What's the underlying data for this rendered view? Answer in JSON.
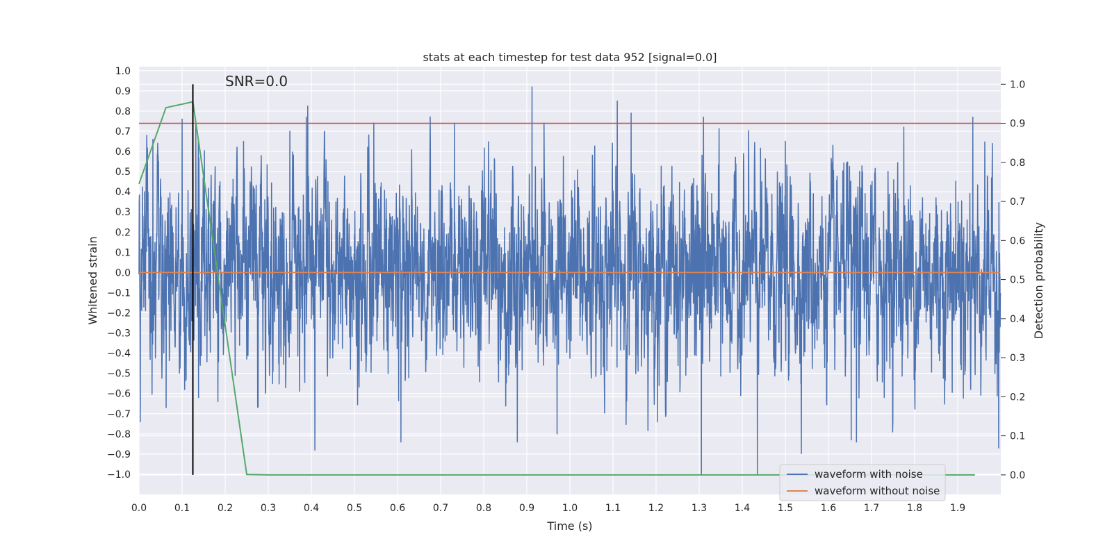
{
  "chart_data": {
    "type": "line",
    "title": "stats at each timestep for test data 952 [signal=0.0]",
    "xlabel": "Time (s)",
    "ylabel": "Whitened strain",
    "y2label": "Detection probability",
    "xlim": [
      0.0,
      2.0
    ],
    "ylim": [
      -1.1,
      1.02
    ],
    "y2lim": [
      -0.05,
      1.045
    ],
    "xticks": [
      0.0,
      0.1,
      0.2,
      0.3,
      0.4,
      0.5,
      0.6,
      0.7,
      0.8,
      0.9,
      1.0,
      1.1,
      1.2,
      1.3,
      1.4,
      1.5,
      1.6,
      1.7,
      1.8,
      1.9
    ],
    "xtick_labels": [
      "0.0",
      "0.1",
      "0.2",
      "0.3",
      "0.4",
      "0.5",
      "0.6",
      "0.7",
      "0.8",
      "0.9",
      "1.0",
      "1.1",
      "1.2",
      "1.3",
      "1.4",
      "1.5",
      "1.6",
      "1.7",
      "1.8",
      "1.9"
    ],
    "yticks": [
      1.0,
      0.9,
      0.8,
      0.7,
      0.6,
      0.5,
      0.4,
      0.3,
      0.2,
      0.1,
      0.0,
      -0.1,
      -0.2,
      -0.3,
      -0.4,
      -0.5,
      -0.6,
      -0.7,
      -0.8,
      -0.9,
      -1.0
    ],
    "ytick_labels": [
      "1.0",
      "0.9",
      "0.8",
      "0.7",
      "0.6",
      "0.5",
      "0.4",
      "0.3",
      "0.2",
      "0.1",
      "0.0",
      "−0.1",
      "−0.2",
      "−0.3",
      "−0.4",
      "−0.5",
      "−0.6",
      "−0.7",
      "−0.8",
      "−0.9",
      "−1.0"
    ],
    "y2ticks": [
      1.0,
      0.9,
      0.8,
      0.7,
      0.6,
      0.5,
      0.4,
      0.3,
      0.2,
      0.1,
      0.0
    ],
    "y2tick_labels": [
      "1.0",
      "0.9",
      "0.8",
      "0.7",
      "0.6",
      "0.5",
      "0.4",
      "0.3",
      "0.2",
      "0.1",
      "0.0"
    ],
    "annotation": "SNR=0.0",
    "series": [
      {
        "name": "waveform with noise",
        "axis": "left",
        "color": "#4c72b0",
        "kind": "noise",
        "n_samples": 4096,
        "sample_rate": 2048,
        "amplitude_range": [
          -1.0,
          0.92
        ],
        "peaks": [
          {
            "t": 0.003,
            "v": -0.74
          },
          {
            "t": 0.018,
            "v": 0.68
          },
          {
            "t": 0.032,
            "v": 0.66
          },
          {
            "t": 0.063,
            "v": -0.67
          },
          {
            "t": 0.1,
            "v": 0.76
          },
          {
            "t": 0.132,
            "v": 0.74
          },
          {
            "t": 0.138,
            "v": -0.62
          },
          {
            "t": 0.183,
            "v": -0.64
          },
          {
            "t": 0.35,
            "v": 0.7
          },
          {
            "t": 0.388,
            "v": 0.77
          },
          {
            "t": 0.408,
            "v": -0.88
          },
          {
            "t": 0.545,
            "v": 0.74
          },
          {
            "t": 0.608,
            "v": -0.84
          },
          {
            "t": 0.732,
            "v": 0.74
          },
          {
            "t": 0.878,
            "v": -0.84
          },
          {
            "t": 0.912,
            "v": 0.92
          },
          {
            "t": 0.94,
            "v": 0.74
          },
          {
            "t": 0.97,
            "v": -0.8
          },
          {
            "t": 1.11,
            "v": 0.85
          },
          {
            "t": 1.142,
            "v": 0.79
          },
          {
            "t": 1.305,
            "v": -1.0
          },
          {
            "t": 1.31,
            "v": 0.77
          },
          {
            "t": 1.435,
            "v": -1.0
          },
          {
            "t": 1.5,
            "v": 0.65
          },
          {
            "t": 1.653,
            "v": -0.83
          },
          {
            "t": 1.665,
            "v": -0.84
          },
          {
            "t": 1.775,
            "v": 0.72
          },
          {
            "t": 1.935,
            "v": 0.77
          },
          {
            "t": 1.995,
            "v": -0.87
          }
        ]
      },
      {
        "name": "waveform without noise",
        "axis": "left",
        "color": "#dd8452",
        "x": [
          0.0,
          1.998
        ],
        "y": [
          0.0,
          0.0
        ]
      },
      {
        "name": "detection probability",
        "axis": "right",
        "color": "#55a868",
        "x": [
          0.0,
          0.0625,
          0.125,
          0.25,
          0.3,
          0.5,
          1.0,
          1.5,
          1.94
        ],
        "y": [
          0.745,
          0.94,
          0.955,
          0.001,
          0.0,
          0.0,
          0.0,
          0.0,
          0.0
        ]
      }
    ],
    "threshold": {
      "axis": "right",
      "value": 0.9,
      "color": "#c44e52"
    },
    "vline": {
      "x": 0.125,
      "ymin": 0.0,
      "ymax": 1.0,
      "axis": "right",
      "color": "#000000"
    },
    "legend": {
      "placement": "lower-right",
      "entries": [
        {
          "label": "waveform with noise",
          "color": "#4c72b0"
        },
        {
          "label": "waveform without noise",
          "color": "#dd8452"
        }
      ]
    },
    "grid": true
  }
}
